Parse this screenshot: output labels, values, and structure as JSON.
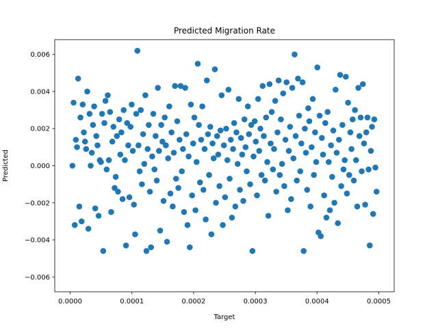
{
  "chart_data": {
    "type": "scatter",
    "title": "Predicted Migration Rate",
    "xlabel": "Target",
    "ylabel": "Predicted",
    "xlim": [
      -2.5e-05,
      0.000525
    ],
    "ylim": [
      -0.0068,
      0.0068
    ],
    "xticks": [
      0.0,
      0.0001,
      0.0002,
      0.0003,
      0.0004,
      0.0005
    ],
    "xtick_labels": [
      "0.0000",
      "0.0001",
      "0.0002",
      "0.0003",
      "0.0004",
      "0.0005"
    ],
    "yticks": [
      -0.006,
      -0.004,
      -0.002,
      0.0,
      0.002,
      0.004,
      0.006
    ],
    "ytick_labels": [
      "−0.006",
      "−0.004",
      "−0.002",
      "0.000",
      "0.002",
      "0.004",
      "0.006"
    ],
    "grid": false,
    "legend": "none",
    "marker_color": "#1f77b4",
    "series": [
      {
        "points": [
          [
            3.7e-06,
            -0.0
          ],
          [
            5.5e-06,
            0.0034
          ],
          [
            7.4e-06,
            -0.0032
          ],
          [
            9.2e-06,
            0.0014
          ],
          [
            1.11e-05,
            0.001
          ],
          [
            1.29e-05,
            0.0047
          ],
          [
            1.48e-05,
            -0.0022
          ],
          [
            1.66e-05,
            0.0026
          ],
          [
            1.85e-05,
            -0.003
          ],
          [
            2.03e-05,
            0.0033
          ],
          [
            2.21e-05,
            0.0018
          ],
          [
            2.4e-05,
            0.0013
          ],
          [
            2.58e-05,
            0.0009
          ],
          [
            2.77e-05,
            0.004
          ],
          [
            2.95e-05,
            -0.0034
          ],
          [
            3.14e-05,
            0.0028
          ],
          [
            3.32e-05,
            -0.0
          ],
          [
            3.51e-05,
            0.0007
          ],
          [
            3.69e-05,
            0.0022
          ],
          [
            3.88e-05,
            0.0032
          ],
          [
            4.06e-05,
            -0.0023
          ],
          [
            4.24e-05,
            0.0016
          ],
          [
            4.43e-05,
            0.0011
          ],
          [
            4.61e-05,
            -0.0027
          ],
          [
            4.8e-05,
            0.0003
          ],
          [
            4.98e-05,
            0.0002
          ],
          [
            5.17e-05,
            0.0028
          ],
          [
            5.35e-05,
            -0.0046
          ],
          [
            5.54e-05,
            0.0023
          ],
          [
            5.72e-05,
            0.0035
          ],
          [
            5.91e-05,
            -0.0002
          ],
          [
            6.09e-05,
            0.0038
          ],
          [
            6.27e-05,
            0.0003
          ],
          [
            6.46e-05,
            0.0029
          ],
          [
            6.64e-05,
            -0.0025
          ],
          [
            6.83e-05,
            0.0013
          ],
          [
            7.01e-05,
            0.0021
          ],
          [
            7.2e-05,
            -0.0012
          ],
          [
            7.38e-05,
            -0.0006
          ],
          [
            7.57e-05,
            0.0016
          ],
          [
            7.75e-05,
            -0.0014
          ],
          [
            7.94e-05,
            0.0025
          ],
          [
            8.12e-05,
            0.0006
          ],
          [
            8.3e-05,
            0.0018
          ],
          [
            8.49e-05,
            -0.0018
          ],
          [
            8.67e-05,
            0.003
          ],
          [
            8.86e-05,
            0.0003
          ],
          [
            9.04e-05,
            -0.0043
          ],
          [
            9.23e-05,
            0.0023
          ],
          [
            9.41e-05,
            0.0011
          ],
          [
            9.6e-05,
            -0.0017
          ],
          [
            9.78e-05,
            0.0021
          ],
          [
            9.97e-05,
            0.0033
          ],
          [
            0.0001015,
            0.0008
          ],
          [
            0.0001033,
            -0.0021
          ],
          [
            0.0001052,
            -0.0037
          ],
          [
            0.000107,
            0.0028
          ],
          [
            0.0001089,
            0.0062
          ],
          [
            0.0001107,
            0.0011
          ],
          [
            0.0001126,
            -0.0003
          ],
          [
            0.0001144,
            0.003
          ],
          [
            0.0001163,
            -0.001
          ],
          [
            0.0001181,
            0.0017
          ],
          [
            0.00012,
            0.0001
          ],
          [
            0.0001218,
            0.0038
          ],
          [
            0.0001236,
            -0.0046
          ],
          [
            0.0001255,
            0.0009
          ],
          [
            0.0001273,
            0.0022
          ],
          [
            0.0001292,
            -0.0014
          ],
          [
            0.000131,
            -0.0044
          ],
          [
            0.0001329,
            0.0005
          ],
          [
            0.0001347,
            0.0028
          ],
          [
            0.0001366,
            -0.0002
          ],
          [
            0.0001384,
            0.0016
          ],
          [
            0.0001403,
            -0.0008
          ],
          [
            0.0001421,
            0.0042
          ],
          [
            0.0001439,
            0.0008
          ],
          [
            0.0001458,
            -0.0035
          ],
          [
            0.0001476,
            0.0022
          ],
          [
            0.0001495,
            0.0013
          ],
          [
            0.0001513,
            -0.0019
          ],
          [
            0.0001532,
            0.0026
          ],
          [
            0.000155,
            0.0011
          ],
          [
            0.0001569,
            -0.0041
          ],
          [
            0.0001587,
            0.0004
          ],
          [
            0.0001606,
            0.0032
          ],
          [
            0.0001624,
            -0.0015
          ],
          [
            0.0001642,
            0.0018
          ],
          [
            0.0001661,
            -0.0022
          ],
          [
            0.0001679,
            0.0007
          ],
          [
            0.0001698,
            0.0043
          ],
          [
            0.0001716,
            -0.0007
          ],
          [
            0.0001735,
            0.0024
          ],
          [
            0.0001753,
            -0.0012
          ],
          [
            0.0001772,
            0.0014
          ],
          [
            0.000179,
            0.0043
          ],
          [
            0.0001809,
            -0.0003
          ],
          [
            0.0001827,
            0.0009
          ],
          [
            0.0001845,
            -0.0025
          ],
          [
            0.0001864,
            0.0042
          ],
          [
            0.0001882,
            0.0017
          ],
          [
            0.0001901,
            -0.0032
          ],
          [
            0.0001919,
            0.0005
          ],
          [
            0.0001938,
            -0.0044
          ],
          [
            0.0001956,
            0.0033
          ],
          [
            0.0001975,
            -0.0016
          ],
          [
            0.0001993,
            0.0012
          ],
          [
            0.0002012,
            0.0026
          ],
          [
            0.000203,
            -0.0024
          ],
          [
            0.0002048,
            0.0002
          ],
          [
            0.0002067,
            0.0055
          ],
          [
            0.0002085,
            0.0022
          ],
          [
            0.0002104,
            -0.0009
          ],
          [
            0.0002122,
            0.0014
          ],
          [
            0.0002141,
            0.0032
          ],
          [
            0.0002159,
            -0.0013
          ],
          [
            0.0002178,
            0.0009
          ],
          [
            0.0002196,
            -0.0029
          ],
          [
            0.0002215,
            0.0046
          ],
          [
            0.0002233,
            0.0017
          ],
          [
            0.0002251,
            -0.0005
          ],
          [
            0.000227,
            0.0021
          ],
          [
            0.0002288,
            -0.0037
          ],
          [
            0.0002307,
            0.0012
          ],
          [
            0.0002325,
            0.0004
          ],
          [
            0.0002344,
            0.0052
          ],
          [
            0.0002362,
            -0.002
          ],
          [
            0.0002381,
            0.0016
          ],
          [
            0.0002399,
            0.0006
          ],
          [
            0.0002418,
            -0.0011
          ],
          [
            0.0002436,
            0.0019
          ],
          [
            0.0002454,
            0.0038
          ],
          [
            0.0002473,
            -0.0032
          ],
          [
            0.0002491,
            0.0011
          ],
          [
            0.000251,
            -0.0017
          ],
          [
            0.0002528,
            0.002
          ],
          [
            0.0002547,
            0.0003
          ],
          [
            0.0002565,
            0.0041
          ],
          [
            0.0002584,
            -0.0007
          ],
          [
            0.0002602,
            0.0014
          ],
          [
            0.0002621,
            -0.0028
          ],
          [
            0.0002639,
            0.0009
          ],
          [
            0.0002657,
            0.0023
          ],
          [
            0.0002676,
            -0.0022
          ],
          [
            0.0002694,
            0.0018
          ],
          [
            0.0002713,
            0.0001
          ],
          [
            0.0002731,
            0.0036
          ],
          [
            0.000275,
            -0.0013
          ],
          [
            0.0002768,
            0.0015
          ],
          [
            0.0002787,
            0.0006
          ],
          [
            0.0002805,
            -0.0019
          ],
          [
            0.0002824,
            0.0025
          ],
          [
            0.0002842,
            0.001
          ],
          [
            0.000286,
            -0.0003
          ],
          [
            0.0002879,
            0.0032
          ],
          [
            0.0002897,
            0.0017
          ],
          [
            0.0002916,
            -0.001
          ],
          [
            0.0002934,
            0.0022
          ],
          [
            0.0002953,
            -0.0046
          ],
          [
            0.0002971,
            0.0005
          ],
          [
            0.000299,
            0.0024
          ],
          [
            0.0003008,
            0.0013
          ],
          [
            0.0003027,
            -0.0016
          ],
          [
            0.0003045,
            0.0036
          ],
          [
            0.0003063,
            0.0008
          ],
          [
            0.0003082,
            0.002
          ],
          [
            0.00031,
            -0.0005
          ],
          [
            0.0003119,
            0.0043
          ],
          [
            0.0003137,
            0.0016
          ],
          [
            0.0003156,
            -0.0008
          ],
          [
            0.0003174,
            0.0026
          ],
          [
            0.0003193,
            0.0002
          ],
          [
            0.0003211,
            -0.0027
          ],
          [
            0.000323,
            0.0044
          ],
          [
            0.0003248,
            0.0012
          ],
          [
            0.0003266,
            0.0029
          ],
          [
            0.0003285,
            -0.0002
          ],
          [
            0.0003303,
            0.0009
          ],
          [
            0.0003322,
            0.0035
          ],
          [
            0.000334,
            -0.0014
          ],
          [
            0.0003359,
            0.0018
          ],
          [
            0.0003377,
            0.0046
          ],
          [
            0.0003396,
            -0.0005
          ],
          [
            0.0003414,
            0.0025
          ],
          [
            0.0003433,
            0.0001
          ],
          [
            0.0003451,
            0.0039
          ],
          [
            0.0003469,
            -0.0011
          ],
          [
            0.0003488,
            0.0014
          ],
          [
            0.0003506,
            0.0045
          ],
          [
            0.0003525,
            -0.0024
          ],
          [
            0.0003543,
            0.0008
          ],
          [
            0.0003562,
            0.0021
          ],
          [
            0.000358,
            -0.0018
          ],
          [
            0.0003599,
            0.0042
          ],
          [
            0.0003617,
            0.0004
          ],
          [
            0.0003636,
            0.006
          ],
          [
            0.0003654,
            0.0016
          ],
          [
            0.0003672,
            -0.0008
          ],
          [
            0.0003691,
            0.0047
          ],
          [
            0.0003709,
            0.0027
          ],
          [
            0.0003728,
            -0.0003
          ],
          [
            0.0003746,
            0.0012
          ],
          [
            0.0003765,
            0.0045
          ],
          [
            0.0003783,
            -0.0046
          ],
          [
            0.0003802,
            0.002
          ],
          [
            0.000382,
            0.0007
          ],
          [
            0.0003839,
            -0.0013
          ],
          [
            0.0003857,
            0.0031
          ],
          [
            0.0003875,
            0.0024
          ],
          [
            0.0003894,
            -0.0022
          ],
          [
            0.0003912,
            0.001
          ],
          [
            0.0003931,
            0.0036
          ],
          [
            0.0003949,
            -0.0005
          ],
          [
            0.0003968,
            0.0018
          ],
          [
            0.0003986,
            0.0002
          ],
          [
            0.0004005,
            0.0053
          ],
          [
            0.0004023,
            -0.0036
          ],
          [
            0.0004042,
            0.0027
          ],
          [
            0.000406,
            -0.0038
          ],
          [
            0.0004078,
            0.0015
          ],
          [
            0.0004097,
            0.0006
          ],
          [
            0.0004115,
            -0.0016
          ],
          [
            0.0004134,
            0.0023
          ],
          [
            0.0004152,
            -0.0028
          ],
          [
            0.0004171,
            0.0029
          ],
          [
            0.0004189,
            0.0002
          ],
          [
            0.0004208,
            -0.0024
          ],
          [
            0.0004226,
            0.0011
          ],
          [
            0.0004245,
            -0.0006
          ],
          [
            0.0004263,
            0.0019
          ],
          [
            0.0004281,
            -0.002
          ],
          [
            0.00043,
            0.0041
          ],
          [
            0.0004318,
            0.0007
          ],
          [
            0.0004337,
            -0.0031
          ],
          [
            0.0004355,
            0.0014
          ],
          [
            0.0004374,
            0.0049
          ],
          [
            0.0004392,
            -0.0011
          ],
          [
            0.0004411,
            0.0022
          ],
          [
            0.0004429,
            -0.0002
          ],
          [
            0.0004448,
            0.0003
          ],
          [
            0.0004466,
            0.0048
          ],
          [
            0.0004484,
            -0.0015
          ],
          [
            0.0004503,
            0.0034
          ],
          [
            0.0004521,
            -0.0005
          ],
          [
            0.000454,
            0.0018
          ],
          [
            0.0004558,
            0.0009
          ],
          [
            0.0004577,
            0.0025
          ],
          [
            0.0004595,
            -0.0008
          ],
          [
            0.0004614,
            0.003
          ],
          [
            0.0004632,
            0.0003
          ],
          [
            0.0004651,
            -0.0022
          ],
          [
            0.0004669,
            0.0042
          ],
          [
            0.0004687,
            0.0016
          ],
          [
            0.0004706,
            0.0026
          ],
          [
            0.0004724,
            -0.0003
          ],
          [
            0.0004743,
            0.0044
          ],
          [
            0.0004761,
            0.0012
          ],
          [
            0.000478,
            -0.0021
          ],
          [
            0.0004798,
            0.0018
          ],
          [
            0.0004817,
            0.0026
          ],
          [
            0.0004835,
            -0.0002
          ],
          [
            0.0004854,
            -0.0043
          ],
          [
            0.0004872,
            0.0008
          ],
          [
            0.000489,
            0.0021
          ],
          [
            0.0004909,
            -0.0026
          ],
          [
            0.0004927,
            0.0025
          ],
          [
            0.0004946,
            -0.0001
          ],
          [
            0.0004964,
            -0.0014
          ]
        ]
      }
    ]
  }
}
